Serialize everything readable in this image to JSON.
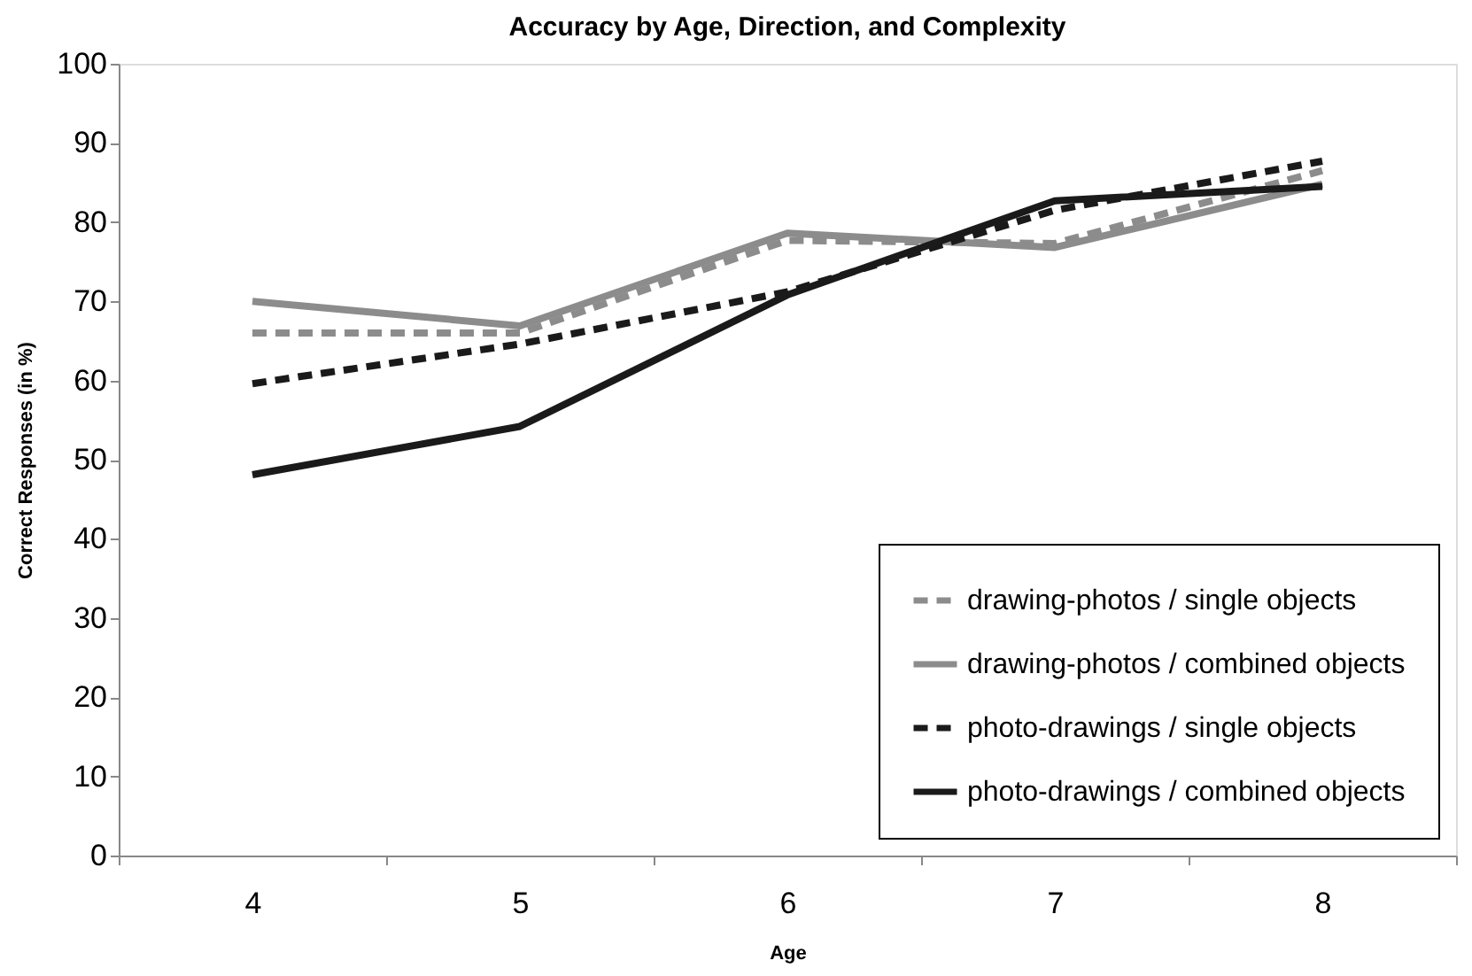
{
  "chart_data": {
    "type": "line",
    "title": "Accuracy by Age, Direction, and Complexity",
    "xlabel": "Age",
    "ylabel": "Correct Responses (in %)",
    "categories": [
      "4",
      "5",
      "6",
      "7",
      "8"
    ],
    "series": [
      {
        "name": "drawing-photos / single objects",
        "color": "#8c8c8c",
        "line_style": "dashed",
        "values": [
          66,
          66,
          77.7,
          77.3,
          86.5
        ]
      },
      {
        "name": "drawing-photos / combined objects",
        "color": "#8c8c8c",
        "line_style": "solid",
        "values": [
          70,
          66.9,
          78.6,
          76.8,
          84.8
        ]
      },
      {
        "name": "photo-drawings / single objects",
        "color": "#1a1a1a",
        "line_style": "dashed",
        "values": [
          59.6,
          64.6,
          71.2,
          81.5,
          87.7
        ]
      },
      {
        "name": "photo-drawings / combined objects",
        "color": "#1a1a1a",
        "line_style": "solid",
        "values": [
          48.1,
          54.2,
          70.8,
          82.7,
          84.5
        ]
      }
    ],
    "ylim": [
      0,
      100
    ],
    "yticks": [
      0,
      10,
      20,
      30,
      40,
      50,
      60,
      70,
      80,
      90,
      100
    ],
    "grid": false,
    "legend": "bottom right",
    "marker": "none"
  }
}
